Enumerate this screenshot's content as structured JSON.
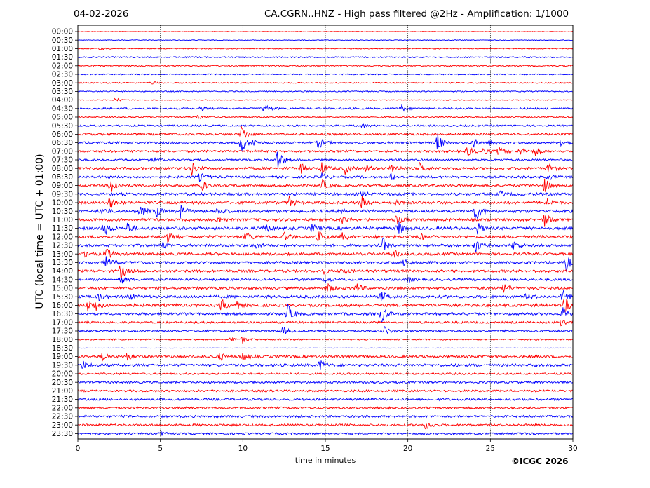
{
  "header": {
    "date": "04-02-2026",
    "title": "CA.CGRN..HNZ - High pass filtered @2Hz - Amplification: 1/1000"
  },
  "footer": {
    "copyright": "©ICGC 2026"
  },
  "chart_data": {
    "type": "line",
    "title": "CA.CGRN..HNZ - High pass filtered @2Hz - Amplification: 1/1000",
    "xlabel": "time in minutes",
    "ylabel": "UTC (local time = UTC + 01:00)",
    "xlim": [
      0,
      30
    ],
    "x_ticks": [
      0,
      5,
      10,
      15,
      20,
      25,
      30
    ],
    "vertical_gridlines": [
      5,
      10,
      15,
      20,
      25
    ],
    "grid": "vertical dotted",
    "colors": {
      "even_row": "#ff0000",
      "odd_row": "#0000ff"
    },
    "rows": [
      {
        "label": "00:00",
        "color": "#ff0000",
        "level": 0.4,
        "events": []
      },
      {
        "label": "00:30",
        "color": "#0000ff",
        "level": 0.5,
        "events": []
      },
      {
        "label": "01:00",
        "color": "#ff0000",
        "level": 0.7,
        "events": [
          {
            "t": 1.3,
            "amp": 2
          }
        ]
      },
      {
        "label": "01:30",
        "color": "#0000ff",
        "level": 0.9,
        "events": []
      },
      {
        "label": "02:00",
        "color": "#ff0000",
        "level": 0.9,
        "events": []
      },
      {
        "label": "02:30",
        "color": "#0000ff",
        "level": 0.8,
        "events": []
      },
      {
        "label": "03:00",
        "color": "#ff0000",
        "level": 0.8,
        "events": [
          {
            "t": 4.5,
            "amp": 2
          }
        ]
      },
      {
        "label": "03:30",
        "color": "#0000ff",
        "level": 0.8,
        "events": []
      },
      {
        "label": "04:00",
        "color": "#ff0000",
        "level": 0.6,
        "events": [
          {
            "t": 2.3,
            "amp": 3
          }
        ]
      },
      {
        "label": "04:30",
        "color": "#0000ff",
        "level": 1.2,
        "events": [
          {
            "t": 7.4,
            "amp": 3
          },
          {
            "t": 11.3,
            "amp": 7
          },
          {
            "t": 19.6,
            "amp": 5
          }
        ]
      },
      {
        "label": "05:00",
        "color": "#ff0000",
        "level": 1.0,
        "events": [
          {
            "t": 7.2,
            "amp": 3
          }
        ]
      },
      {
        "label": "05:30",
        "color": "#0000ff",
        "level": 1.2,
        "events": [
          {
            "t": 17.2,
            "amp": 3
          }
        ]
      },
      {
        "label": "06:00",
        "color": "#ff0000",
        "level": 1.5,
        "events": [
          {
            "t": 9.9,
            "amp": 14
          }
        ]
      },
      {
        "label": "06:30",
        "color": "#0000ff",
        "level": 1.5,
        "events": [
          {
            "t": 9.9,
            "amp": 16
          },
          {
            "t": 10.6,
            "amp": 6
          },
          {
            "t": 14.6,
            "amp": 8
          },
          {
            "t": 21.8,
            "amp": 14
          },
          {
            "t": 24.0,
            "amp": 6
          },
          {
            "t": 25.0,
            "amp": 5
          },
          {
            "t": 29.2,
            "amp": 6
          }
        ]
      },
      {
        "label": "07:00",
        "color": "#ff0000",
        "level": 1.5,
        "events": [
          {
            "t": 23.6,
            "amp": 8
          },
          {
            "t": 24.5,
            "amp": 5
          },
          {
            "t": 25.5,
            "amp": 6
          },
          {
            "t": 26.8,
            "amp": 5
          },
          {
            "t": 27.7,
            "amp": 6
          }
        ]
      },
      {
        "label": "07:30",
        "color": "#0000ff",
        "level": 1.3,
        "events": [
          {
            "t": 4.4,
            "amp": 5
          },
          {
            "t": 12.1,
            "amp": 18
          }
        ]
      },
      {
        "label": "08:00",
        "color": "#ff0000",
        "level": 1.8,
        "events": [
          {
            "t": 6.9,
            "amp": 10
          },
          {
            "t": 13.5,
            "amp": 7
          },
          {
            "t": 14.8,
            "amp": 8
          },
          {
            "t": 16.2,
            "amp": 7
          },
          {
            "t": 17.5,
            "amp": 5
          },
          {
            "t": 19.0,
            "amp": 7
          },
          {
            "t": 20.7,
            "amp": 7
          },
          {
            "t": 28.5,
            "amp": 5
          }
        ]
      },
      {
        "label": "08:30",
        "color": "#0000ff",
        "level": 1.6,
        "events": [
          {
            "t": 7.4,
            "amp": 6
          },
          {
            "t": 14.8,
            "amp": 6
          },
          {
            "t": 19.0,
            "amp": 5
          },
          {
            "t": 28.5,
            "amp": 4
          }
        ]
      },
      {
        "label": "09:00",
        "color": "#ff0000",
        "level": 1.6,
        "events": [
          {
            "t": 2.0,
            "amp": 14
          },
          {
            "t": 7.4,
            "amp": 12
          },
          {
            "t": 14.8,
            "amp": 8
          },
          {
            "t": 28.3,
            "amp": 10
          }
        ]
      },
      {
        "label": "09:30",
        "color": "#0000ff",
        "level": 1.8,
        "events": [
          {
            "t": 17.2,
            "amp": 4
          },
          {
            "t": 25.6,
            "amp": 4
          }
        ]
      },
      {
        "label": "10:00",
        "color": "#ff0000",
        "level": 1.9,
        "events": [
          {
            "t": 1.9,
            "amp": 8
          },
          {
            "t": 12.8,
            "amp": 8
          },
          {
            "t": 17.2,
            "amp": 9
          },
          {
            "t": 19.2,
            "amp": 4
          },
          {
            "t": 28.4,
            "amp": 6
          }
        ]
      },
      {
        "label": "10:30",
        "color": "#0000ff",
        "level": 2.0,
        "events": [
          {
            "t": 1.5,
            "amp": 5
          },
          {
            "t": 3.8,
            "amp": 8
          },
          {
            "t": 4.8,
            "amp": 7
          },
          {
            "t": 6.2,
            "amp": 9
          },
          {
            "t": 8.5,
            "amp": 5
          },
          {
            "t": 15.9,
            "amp": 5
          },
          {
            "t": 24.1,
            "amp": 14
          }
        ]
      },
      {
        "label": "11:00",
        "color": "#ff0000",
        "level": 1.8,
        "events": [
          {
            "t": 8.5,
            "amp": 6
          },
          {
            "t": 16.0,
            "amp": 6
          },
          {
            "t": 19.3,
            "amp": 7
          },
          {
            "t": 28.3,
            "amp": 10
          }
        ]
      },
      {
        "label": "11:30",
        "color": "#0000ff",
        "level": 2.0,
        "events": [
          {
            "t": 1.6,
            "amp": 10
          },
          {
            "t": 3.0,
            "amp": 8
          },
          {
            "t": 11.3,
            "amp": 6
          },
          {
            "t": 14.2,
            "amp": 6
          },
          {
            "t": 19.4,
            "amp": 12
          },
          {
            "t": 24.2,
            "amp": 9
          }
        ]
      },
      {
        "label": "12:00",
        "color": "#ff0000",
        "level": 2.0,
        "events": [
          {
            "t": 5.4,
            "amp": 7
          },
          {
            "t": 10.2,
            "amp": 7
          },
          {
            "t": 12.5,
            "amp": 5
          },
          {
            "t": 14.6,
            "amp": 7
          },
          {
            "t": 16.0,
            "amp": 5
          },
          {
            "t": 20.8,
            "amp": 4
          }
        ]
      },
      {
        "label": "12:30",
        "color": "#0000ff",
        "level": 1.8,
        "events": [
          {
            "t": 5.1,
            "amp": 5
          },
          {
            "t": 10.8,
            "amp": 5
          },
          {
            "t": 18.5,
            "amp": 10
          },
          {
            "t": 24.1,
            "amp": 9
          },
          {
            "t": 26.4,
            "amp": 7
          }
        ]
      },
      {
        "label": "13:00",
        "color": "#ff0000",
        "level": 1.8,
        "events": [
          {
            "t": 0.5,
            "amp": 5
          },
          {
            "t": 1.7,
            "amp": 9
          },
          {
            "t": 19.1,
            "amp": 6
          }
        ]
      },
      {
        "label": "13:30",
        "color": "#0000ff",
        "level": 1.7,
        "events": [
          {
            "t": 1.7,
            "amp": 8
          },
          {
            "t": 19.8,
            "amp": 6
          },
          {
            "t": 29.6,
            "amp": 12
          }
        ]
      },
      {
        "label": "14:00",
        "color": "#ff0000",
        "level": 1.8,
        "events": [
          {
            "t": 2.6,
            "amp": 12
          },
          {
            "t": 14.8,
            "amp": 5
          },
          {
            "t": 16.0,
            "amp": 5
          }
        ]
      },
      {
        "label": "14:30",
        "color": "#0000ff",
        "level": 1.6,
        "events": [
          {
            "t": 2.6,
            "amp": 6
          },
          {
            "t": 15.0,
            "amp": 4
          },
          {
            "t": 20.0,
            "amp": 4
          }
        ]
      },
      {
        "label": "15:00",
        "color": "#ff0000",
        "level": 1.8,
        "events": [
          {
            "t": 15.1,
            "amp": 8
          },
          {
            "t": 16.9,
            "amp": 6
          },
          {
            "t": 25.8,
            "amp": 7
          }
        ]
      },
      {
        "label": "15:30",
        "color": "#0000ff",
        "level": 1.9,
        "events": [
          {
            "t": 1.3,
            "amp": 5
          },
          {
            "t": 3.1,
            "amp": 5
          },
          {
            "t": 18.4,
            "amp": 8
          },
          {
            "t": 27.2,
            "amp": 4
          },
          {
            "t": 29.4,
            "amp": 10
          }
        ]
      },
      {
        "label": "16:00",
        "color": "#ff0000",
        "level": 2.0,
        "events": [
          {
            "t": 0.6,
            "amp": 9
          },
          {
            "t": 1.1,
            "amp": 6
          },
          {
            "t": 8.7,
            "amp": 8
          },
          {
            "t": 9.6,
            "amp": 5
          },
          {
            "t": 29.5,
            "amp": 10
          }
        ]
      },
      {
        "label": "16:30",
        "color": "#0000ff",
        "level": 1.7,
        "events": [
          {
            "t": 12.7,
            "amp": 14
          },
          {
            "t": 18.4,
            "amp": 12
          },
          {
            "t": 29.4,
            "amp": 8
          }
        ]
      },
      {
        "label": "17:00",
        "color": "#ff0000",
        "level": 1.4,
        "events": [
          {
            "t": 29.3,
            "amp": 6
          }
        ]
      },
      {
        "label": "17:30",
        "color": "#0000ff",
        "level": 1.5,
        "events": [
          {
            "t": 12.4,
            "amp": 5
          },
          {
            "t": 18.6,
            "amp": 6
          }
        ]
      },
      {
        "label": "18:00",
        "color": "#ff0000",
        "level": 1.0,
        "events": [
          {
            "t": 9.3,
            "amp": 4
          },
          {
            "t": 10.0,
            "amp": 5
          }
        ]
      },
      {
        "label": "18:30",
        "color": "#0000ff",
        "level": 0.3,
        "events": []
      },
      {
        "label": "19:00",
        "color": "#ff0000",
        "level": 1.8,
        "events": [
          {
            "t": 1.5,
            "amp": 6
          },
          {
            "t": 3.0,
            "amp": 5
          },
          {
            "t": 8.6,
            "amp": 6
          },
          {
            "t": 10.0,
            "amp": 6
          }
        ]
      },
      {
        "label": "19:30",
        "color": "#0000ff",
        "level": 1.8,
        "events": [
          {
            "t": 0.3,
            "amp": 6
          },
          {
            "t": 14.7,
            "amp": 7
          }
        ]
      },
      {
        "label": "20:00",
        "color": "#ff0000",
        "level": 1.3,
        "events": []
      },
      {
        "label": "20:30",
        "color": "#0000ff",
        "level": 1.4,
        "events": []
      },
      {
        "label": "21:00",
        "color": "#ff0000",
        "level": 1.4,
        "events": []
      },
      {
        "label": "21:30",
        "color": "#0000ff",
        "level": 1.5,
        "events": []
      },
      {
        "label": "22:00",
        "color": "#ff0000",
        "level": 1.5,
        "events": []
      },
      {
        "label": "22:30",
        "color": "#0000ff",
        "level": 1.5,
        "events": []
      },
      {
        "label": "23:00",
        "color": "#ff0000",
        "level": 1.5,
        "events": [
          {
            "t": 21.1,
            "amp": 6
          }
        ]
      },
      {
        "label": "23:30",
        "color": "#0000ff",
        "level": 1.3,
        "events": [
          {
            "t": 5.0,
            "amp": 3
          }
        ]
      }
    ]
  }
}
